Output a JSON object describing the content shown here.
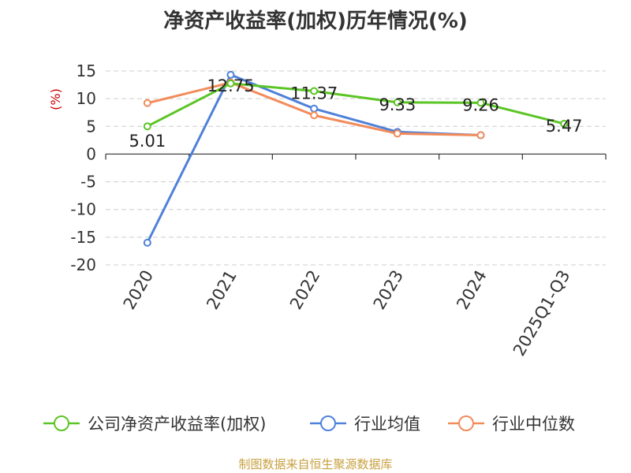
{
  "chart_data": {
    "type": "line",
    "title": "净资产收益率(加权)历年情况(%)",
    "ylabel": "(%)",
    "xlabel": "",
    "categories": [
      "2020",
      "2021",
      "2022",
      "2023",
      "2024",
      "2025Q1-Q3"
    ],
    "ylim": [
      -20,
      15
    ],
    "yticks": [
      15,
      10,
      5,
      0,
      -5,
      -10,
      -15,
      -20
    ],
    "grid": true,
    "legend_position": "bottom",
    "series": [
      {
        "name": "公司净资产收益率(加权)",
        "color": "#5cc526",
        "values": [
          5.01,
          12.75,
          11.37,
          9.33,
          9.26,
          5.47
        ],
        "labels": [
          "5.01",
          "12.75",
          "11.37",
          "9.33",
          "9.26",
          "5.47"
        ]
      },
      {
        "name": "行业均值",
        "color": "#4f81d9",
        "values": [
          -16.0,
          14.3,
          8.2,
          4.0,
          3.4,
          null
        ]
      },
      {
        "name": "行业中位数",
        "color": "#f28b5a",
        "values": [
          9.2,
          12.9,
          7.0,
          3.7,
          3.4,
          null
        ]
      }
    ]
  },
  "source": "制图数据来自恒生聚源数据库"
}
